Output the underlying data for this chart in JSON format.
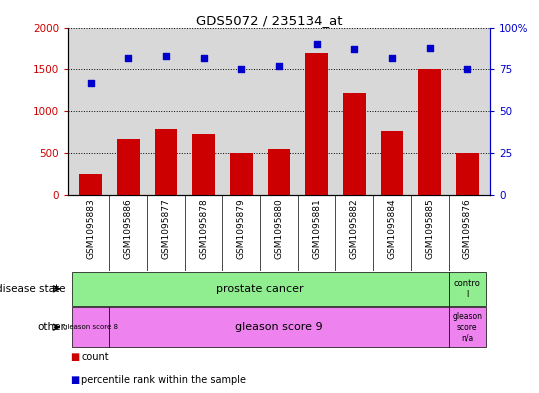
{
  "title": "GDS5072 / 235134_at",
  "samples": [
    "GSM1095883",
    "GSM1095886",
    "GSM1095877",
    "GSM1095878",
    "GSM1095879",
    "GSM1095880",
    "GSM1095881",
    "GSM1095882",
    "GSM1095884",
    "GSM1095885",
    "GSM1095876"
  ],
  "count_values": [
    250,
    670,
    780,
    720,
    500,
    550,
    1700,
    1220,
    760,
    1500,
    500
  ],
  "percentile_values": [
    67,
    82,
    83,
    82,
    75,
    77,
    90,
    87,
    82,
    88,
    75
  ],
  "ylim_left": [
    0,
    2000
  ],
  "ylim_right": [
    0,
    100
  ],
  "yticks_left": [
    0,
    500,
    1000,
    1500,
    2000
  ],
  "yticks_right": [
    0,
    25,
    50,
    75,
    100
  ],
  "bar_color": "#cc0000",
  "dot_color": "#0000cc",
  "chart_bg": "#d8d8d8",
  "outer_bg": "#ffffff",
  "left_axis_color": "#cc0000",
  "right_axis_color": "#0000cc",
  "green_color": "#90ee90",
  "pink_color": "#ee82ee",
  "legend_count_color": "#cc0000",
  "legend_pct_color": "#0000cc"
}
